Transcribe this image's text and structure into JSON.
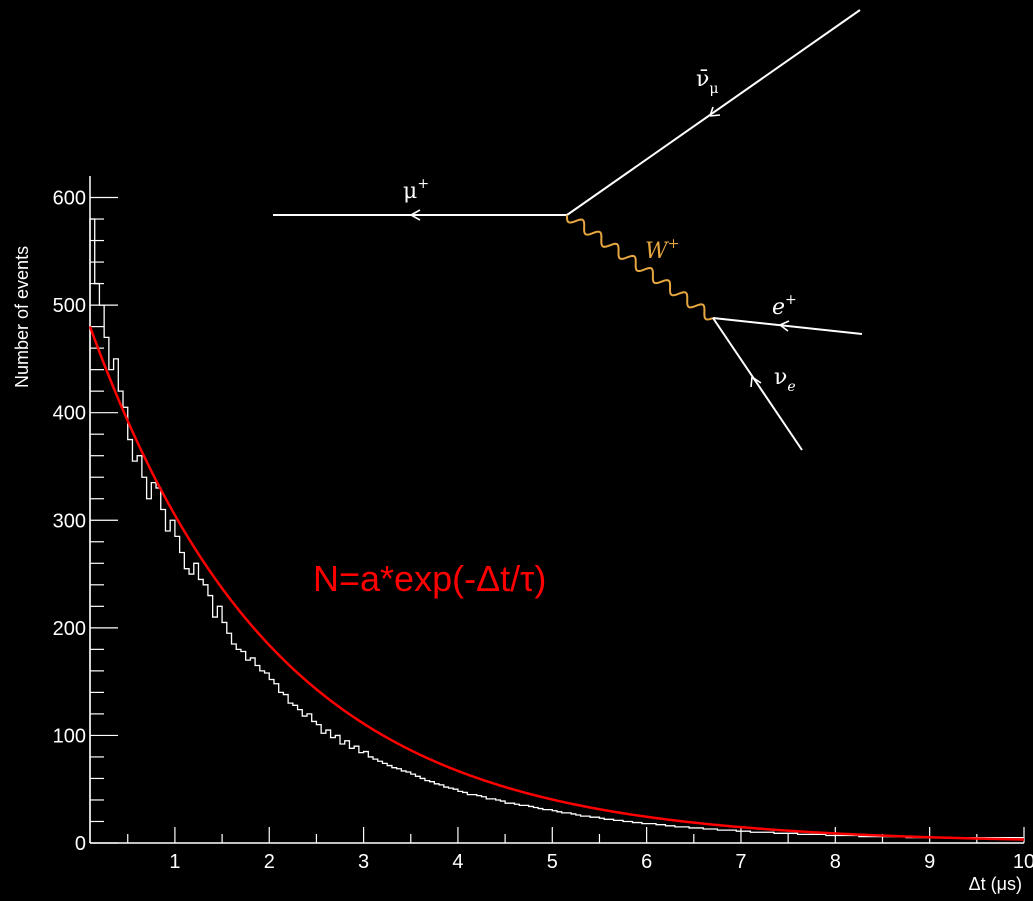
{
  "chart_data": {
    "type": "histogram",
    "xlabel": "Δt (μs)",
    "ylabel": "Number of events",
    "xlim": [
      0.1,
      10
    ],
    "ylim": [
      0,
      620
    ],
    "x_ticks": [
      1,
      2,
      3,
      4,
      5,
      6,
      7,
      8,
      9,
      10
    ],
    "y_ticks": [
      0,
      100,
      200,
      300,
      400,
      500,
      600
    ],
    "grid": false,
    "histogram": {
      "bin_width": 0.05,
      "bin_start": 0.1,
      "values": [
        580,
        520,
        500,
        470,
        440,
        450,
        420,
        405,
        375,
        355,
        360,
        340,
        320,
        335,
        330,
        310,
        290,
        300,
        285,
        270,
        255,
        250,
        260,
        245,
        240,
        230,
        210,
        220,
        205,
        195,
        185,
        180,
        178,
        170,
        172,
        165,
        160,
        158,
        152,
        148,
        140,
        138,
        130,
        128,
        124,
        118,
        120,
        113,
        110,
        102,
        105,
        98,
        100,
        92,
        95,
        88,
        90,
        84,
        85,
        80,
        78,
        76,
        74,
        72,
        70,
        69,
        67,
        66,
        64,
        62,
        60,
        58,
        57,
        55,
        54,
        52,
        51,
        50,
        48,
        47,
        45,
        45,
        44,
        43,
        41,
        41,
        40,
        39,
        37,
        37,
        36,
        35,
        35,
        34,
        33,
        32,
        31,
        31,
        30,
        29,
        28,
        28,
        27,
        26,
        25,
        25,
        24,
        24,
        23,
        22,
        22,
        21,
        21,
        20,
        20,
        19,
        19,
        18,
        18,
        18,
        17,
        17,
        16,
        16,
        15,
        15,
        15,
        14,
        14,
        14,
        13,
        13,
        13,
        12,
        12,
        12,
        12,
        11,
        11,
        11,
        10,
        10,
        10,
        10,
        10,
        9,
        9,
        9,
        9,
        9,
        8,
        8,
        8,
        8,
        8,
        8,
        7,
        7,
        7,
        7,
        7,
        7,
        7,
        6,
        6,
        6,
        6,
        6,
        6,
        6,
        6,
        6,
        6,
        5,
        5,
        5,
        5,
        5,
        5,
        5,
        5,
        5,
        5,
        5,
        5,
        5,
        5,
        5,
        5,
        5,
        5,
        5,
        5,
        5,
        5,
        5,
        5,
        5
      ]
    },
    "fit": {
      "label": "N=a*exp(-Δt/τ)",
      "a": 505,
      "tau": 1.98,
      "color": "#ff0000"
    },
    "histogram_color": "#ffffff",
    "background": "#000000"
  },
  "feynman": {
    "muon_label": "μ",
    "muon_charge": "+",
    "numubar_label": "ν̄",
    "numubar_sub": "μ",
    "w_label": "W",
    "w_charge": "+",
    "w_color": "#e6a640",
    "positron_label": "e",
    "positron_charge": "+",
    "nue_label": "ν",
    "nue_sub": "e"
  }
}
